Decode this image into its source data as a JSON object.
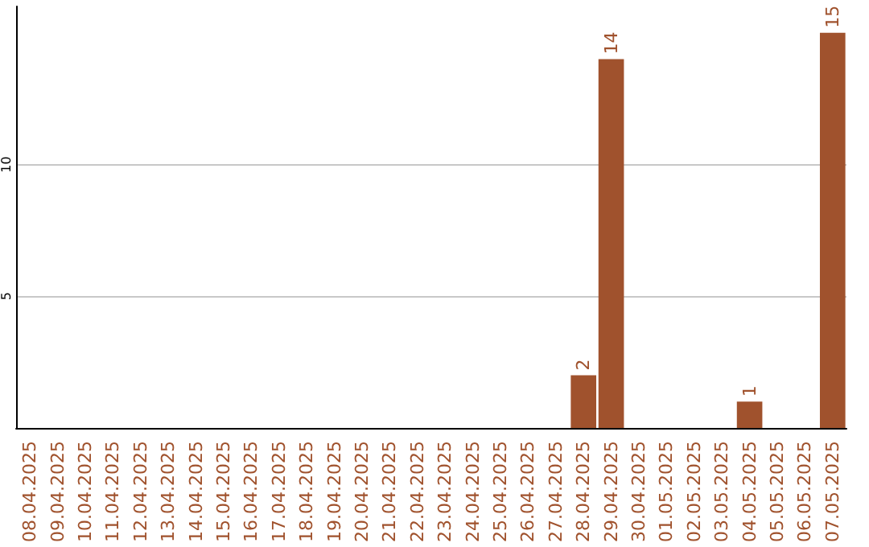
{
  "chart_data": {
    "type": "bar",
    "categories": [
      "08.04.2025",
      "09.04.2025",
      "10.04.2025",
      "11.04.2025",
      "12.04.2025",
      "13.04.2025",
      "14.04.2025",
      "15.04.2025",
      "16.04.2025",
      "17.04.2025",
      "18.04.2025",
      "19.04.2025",
      "20.04.2025",
      "21.04.2025",
      "22.04.2025",
      "23.04.2025",
      "24.04.2025",
      "25.04.2025",
      "26.04.2025",
      "27.04.2025",
      "28.04.2025",
      "29.04.2025",
      "30.04.2025",
      "01.05.2025",
      "02.05.2025",
      "03.05.2025",
      "04.05.2025",
      "05.05.2025",
      "06.05.2025",
      "07.05.2025"
    ],
    "values": [
      0,
      0,
      0,
      0,
      0,
      0,
      0,
      0,
      0,
      0,
      0,
      0,
      0,
      0,
      0,
      0,
      0,
      0,
      0,
      0,
      2,
      14,
      0,
      0,
      0,
      0,
      1,
      0,
      0,
      15
    ],
    "value_labels": [
      null,
      null,
      null,
      null,
      null,
      null,
      null,
      null,
      null,
      null,
      null,
      null,
      null,
      null,
      null,
      null,
      null,
      null,
      null,
      null,
      "2",
      "14",
      null,
      null,
      null,
      null,
      "1",
      null,
      null,
      "15"
    ],
    "color": "#a0522d",
    "ylim": [
      0,
      16
    ],
    "yticks": [
      5,
      10
    ],
    "grid": "y"
  }
}
